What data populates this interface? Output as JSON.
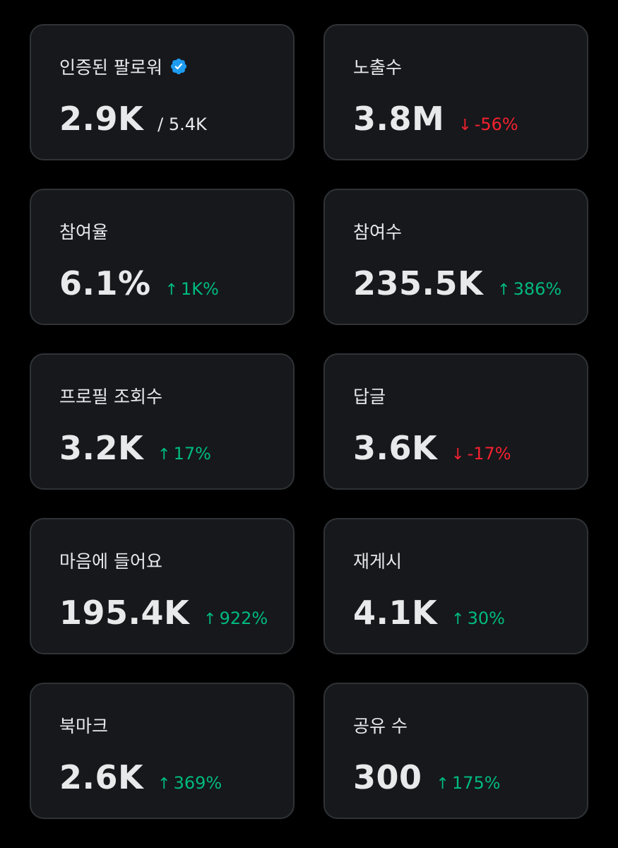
{
  "colors": {
    "background": "#000000",
    "card": "#16181c",
    "border": "#2f3336",
    "text": "#e7e9ea",
    "up": "#00ba7c",
    "down": "#f4212e",
    "verified": "#1d9bf0"
  },
  "cards": [
    {
      "label": "인증된 팔로워",
      "value": "2.9K",
      "sub": "/ 5.4K",
      "verified_icon": "verified-badge-icon"
    },
    {
      "label": "노출수",
      "value": "3.8M",
      "direction": "down",
      "arrow": "↓",
      "change": "-56%"
    },
    {
      "label": "참여율",
      "value": "6.1%",
      "direction": "up",
      "arrow": "↑",
      "change": "1K%"
    },
    {
      "label": "참여수",
      "value": "235.5K",
      "direction": "up",
      "arrow": "↑",
      "change": "386%"
    },
    {
      "label": "프로필 조회수",
      "value": "3.2K",
      "direction": "up",
      "arrow": "↑",
      "change": "17%"
    },
    {
      "label": "답글",
      "value": "3.6K",
      "direction": "down",
      "arrow": "↓",
      "change": "-17%"
    },
    {
      "label": "마음에 들어요",
      "value": "195.4K",
      "direction": "up",
      "arrow": "↑",
      "change": "922%"
    },
    {
      "label": "재게시",
      "value": "4.1K",
      "direction": "up",
      "arrow": "↑",
      "change": "30%"
    },
    {
      "label": "북마크",
      "value": "2.6K",
      "direction": "up",
      "arrow": "↑",
      "change": "369%"
    },
    {
      "label": "공유 수",
      "value": "300",
      "direction": "up",
      "arrow": "↑",
      "change": "175%"
    }
  ]
}
